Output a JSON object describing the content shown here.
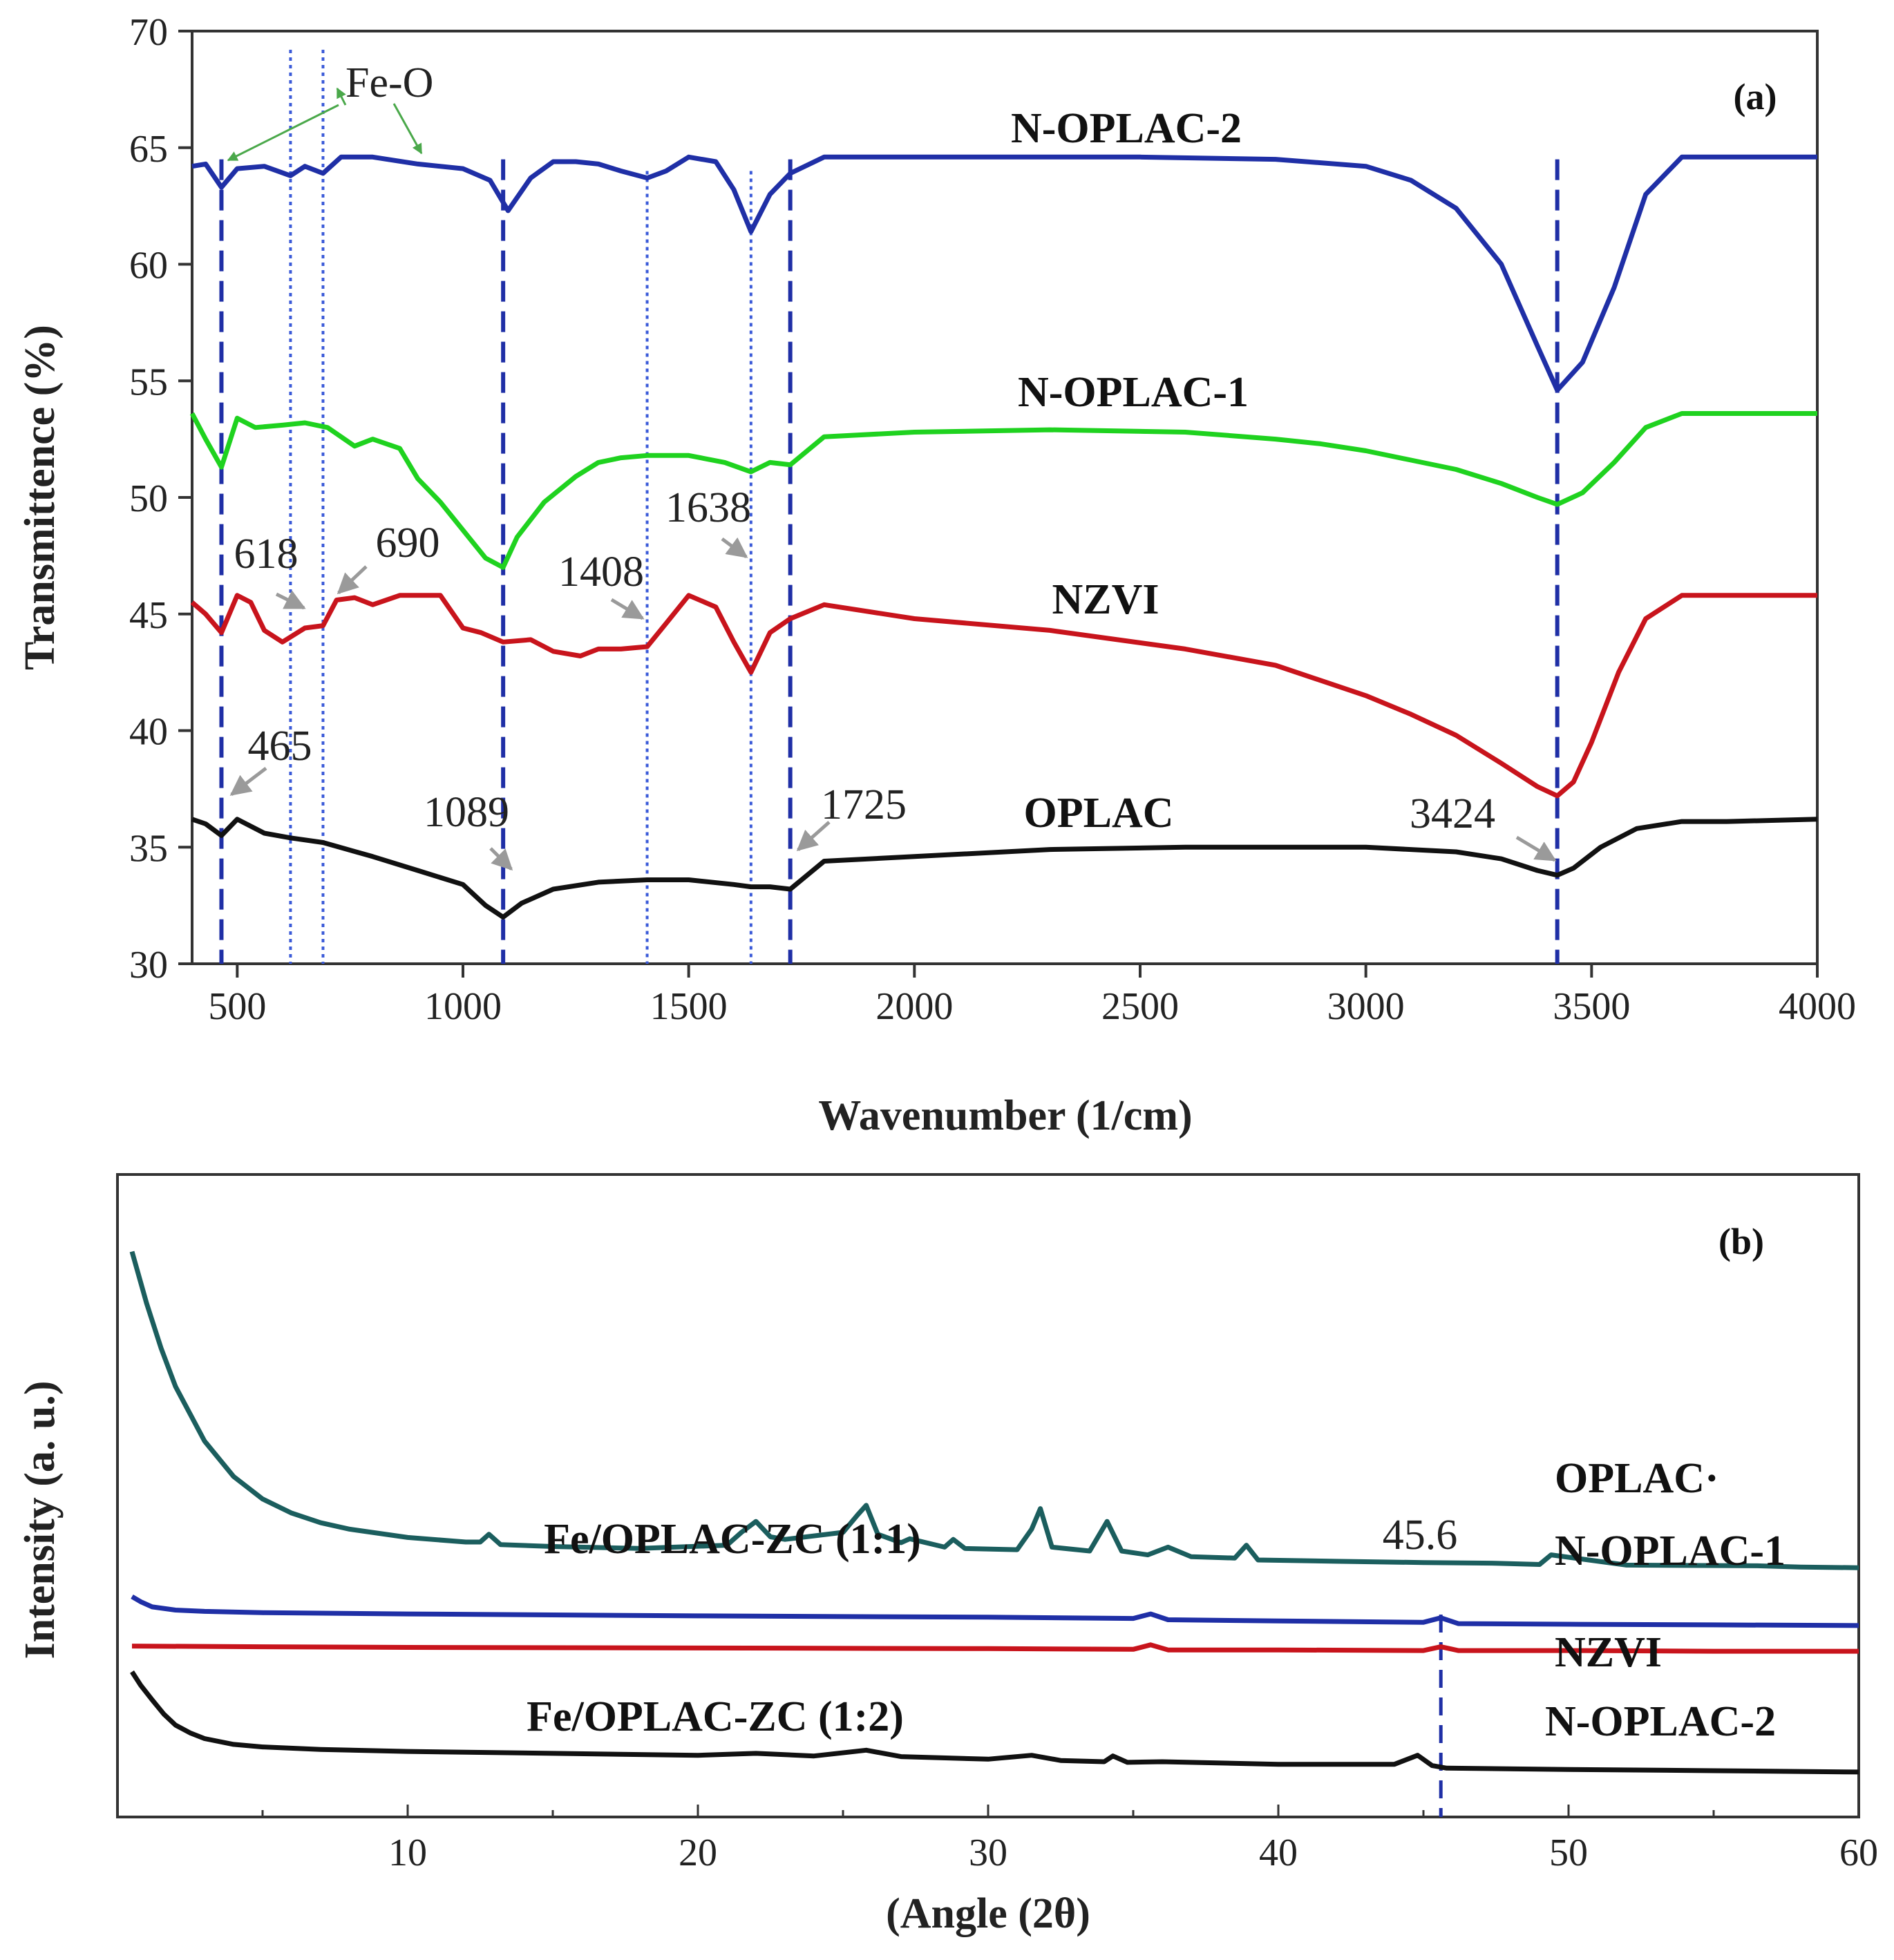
{
  "colors": {
    "n_oplac_2": "#1f2fa6",
    "n_oplac_1": "#1fd21f",
    "nzvi": "#c8141c",
    "oplac": "#111111",
    "xrd_oplac": "#1b5e5e",
    "xrd_n_oplac_1": "#1f2fa6",
    "xrd_nzvi": "#c8141c",
    "xrd_n_oplac_2": "#111111",
    "marker": "#1f2fa6",
    "fe_o": "#4aa84a",
    "arrow": "#9a9a9a"
  },
  "chart_data": [
    {
      "type": "line",
      "panel": "(a)",
      "xlabel": "Wavenumber (1/cm)",
      "ylabel": "Transmittence (%)",
      "xlim": [
        400,
        4000
      ],
      "ylim": [
        30,
        70
      ],
      "xticks": [
        500,
        1000,
        1500,
        2000,
        2500,
        3000,
        3500,
        4000
      ],
      "yticks": [
        30,
        35,
        40,
        45,
        50,
        55,
        60,
        65,
        70
      ],
      "fe_o_label": "Fe-O",
      "marker_lines_dashed": [
        465,
        1089,
        1725,
        3424
      ],
      "marker_lines_dotted": [
        618,
        690,
        1408,
        1638
      ],
      "peak_labels": [
        {
          "text": "465",
          "x": 465,
          "y": 35.5
        },
        {
          "text": "618",
          "x": 618,
          "y": 44.5
        },
        {
          "text": "690",
          "x": 690,
          "y": 44.5
        },
        {
          "text": "1089",
          "x": 1089,
          "y": 32.2
        },
        {
          "text": "1408",
          "x": 1408,
          "y": 43.6
        },
        {
          "text": "1638",
          "x": 1638,
          "y": 51.2
        },
        {
          "text": "1725",
          "x": 1725,
          "y": 33.3
        },
        {
          "text": "3424",
          "x": 3424,
          "y": 33.8
        }
      ],
      "series": [
        {
          "name": "N-OPLAC-2",
          "color_key": "n_oplac_2",
          "x": [
            400,
            430,
            465,
            500,
            560,
            618,
            650,
            690,
            730,
            800,
            900,
            1000,
            1060,
            1100,
            1150,
            1200,
            1250,
            1300,
            1350,
            1408,
            1450,
            1500,
            1560,
            1600,
            1638,
            1680,
            1725,
            1800,
            2000,
            2500,
            2800,
            3000,
            3100,
            3200,
            3300,
            3380,
            3424,
            3480,
            3550,
            3620,
            3700,
            3800,
            4000
          ],
          "y": [
            64.2,
            64.3,
            63.3,
            64.1,
            64.2,
            63.8,
            64.2,
            63.9,
            64.6,
            64.6,
            64.3,
            64.1,
            63.6,
            62.3,
            63.7,
            64.4,
            64.4,
            64.3,
            64.0,
            63.7,
            64.0,
            64.6,
            64.4,
            63.2,
            61.4,
            63.0,
            63.9,
            64.6,
            64.6,
            64.6,
            64.5,
            64.2,
            63.6,
            62.4,
            60.0,
            56.5,
            54.6,
            55.8,
            59.0,
            63.0,
            64.6,
            64.6,
            64.6
          ]
        },
        {
          "name": "N-OPLAC-1",
          "color_key": "n_oplac_1",
          "x": [
            400,
            430,
            465,
            500,
            540,
            600,
            650,
            700,
            760,
            800,
            860,
            900,
            950,
            1000,
            1050,
            1089,
            1120,
            1180,
            1250,
            1300,
            1350,
            1408,
            1500,
            1580,
            1638,
            1680,
            1725,
            1800,
            2000,
            2300,
            2600,
            2800,
            2900,
            3000,
            3100,
            3200,
            3300,
            3380,
            3424,
            3480,
            3550,
            3620,
            3700,
            3800,
            4000
          ],
          "y": [
            53.6,
            52.5,
            51.3,
            53.4,
            53.0,
            53.1,
            53.2,
            53.0,
            52.2,
            52.5,
            52.1,
            50.8,
            49.8,
            48.6,
            47.4,
            47.0,
            48.3,
            49.8,
            50.9,
            51.5,
            51.7,
            51.8,
            51.8,
            51.5,
            51.1,
            51.5,
            51.4,
            52.6,
            52.8,
            52.9,
            52.8,
            52.5,
            52.3,
            52.0,
            51.6,
            51.2,
            50.6,
            50.0,
            49.7,
            50.2,
            51.5,
            53.0,
            53.6,
            53.6,
            53.6
          ]
        },
        {
          "name": "NZVI",
          "color_key": "nzvi",
          "x": [
            400,
            430,
            465,
            500,
            530,
            560,
            600,
            650,
            690,
            720,
            760,
            800,
            860,
            950,
            1000,
            1040,
            1089,
            1150,
            1200,
            1260,
            1300,
            1350,
            1408,
            1450,
            1500,
            1560,
            1600,
            1638,
            1680,
            1725,
            1800,
            2000,
            2300,
            2600,
            2800,
            3000,
            3100,
            3200,
            3300,
            3380,
            3424,
            3460,
            3500,
            3560,
            3620,
            3700,
            4000
          ],
          "y": [
            45.5,
            45.0,
            44.2,
            45.8,
            45.5,
            44.3,
            43.8,
            44.4,
            44.5,
            45.6,
            45.7,
            45.4,
            45.8,
            45.8,
            44.4,
            44.2,
            43.8,
            43.9,
            43.4,
            43.2,
            43.5,
            43.5,
            43.6,
            44.6,
            45.8,
            45.3,
            43.8,
            42.5,
            44.2,
            44.8,
            45.4,
            44.8,
            44.3,
            43.5,
            42.8,
            41.5,
            40.7,
            39.8,
            38.6,
            37.6,
            37.2,
            37.8,
            39.5,
            42.5,
            44.8,
            45.8,
            45.8
          ]
        },
        {
          "name": "OPLAC",
          "color_key": "oplac",
          "x": [
            400,
            430,
            465,
            500,
            560,
            618,
            690,
            800,
            900,
            1000,
            1050,
            1089,
            1130,
            1200,
            1300,
            1408,
            1500,
            1600,
            1638,
            1680,
            1725,
            1800,
            2000,
            2300,
            2600,
            2800,
            3000,
            3200,
            3300,
            3380,
            3424,
            3460,
            3520,
            3600,
            3700,
            3800,
            4000
          ],
          "y": [
            36.2,
            36.0,
            35.5,
            36.2,
            35.6,
            35.4,
            35.2,
            34.6,
            34.0,
            33.4,
            32.5,
            32.0,
            32.6,
            33.2,
            33.5,
            33.6,
            33.6,
            33.4,
            33.3,
            33.3,
            33.2,
            34.4,
            34.6,
            34.9,
            35.0,
            35.0,
            35.0,
            34.8,
            34.5,
            34.0,
            33.8,
            34.1,
            35.0,
            35.8,
            36.1,
            36.1,
            36.2
          ]
        }
      ]
    },
    {
      "type": "line",
      "panel": "(b)",
      "xlabel": "(Angle (2θ)",
      "ylabel": "Intensity (a. u.)",
      "xlim": [
        0,
        60
      ],
      "ylim": [
        0,
        100
      ],
      "xticks": [
        10,
        20,
        30,
        40,
        50,
        60
      ],
      "marker_line": 45.6,
      "marker_label": "45.6",
      "annotations": [
        "Fe/OPLAC-ZC (1:1)",
        "Fe/OPLAC-ZC (1:2)"
      ],
      "series": [
        {
          "name": "OPLAC·",
          "color_key": "xrd_oplac",
          "x": [
            0.5,
            1,
            1.5,
            2,
            3,
            4,
            5,
            6,
            7,
            8,
            10,
            12,
            12.5,
            12.8,
            13.2,
            15,
            18,
            21,
            21.5,
            22,
            22.5,
            23,
            25,
            25.5,
            25.8,
            26.2,
            27,
            27.3,
            28.5,
            28.8,
            29.2,
            31,
            31.5,
            31.8,
            32.2,
            33.5,
            34.1,
            34.6,
            35.5,
            36.2,
            37,
            38.5,
            38.9,
            39.3,
            42,
            45,
            47.5,
            49,
            49.4,
            52,
            56.5,
            58,
            60
          ],
          "y": [
            88,
            80,
            73,
            67,
            58.5,
            53,
            49.5,
            47.3,
            45.8,
            44.8,
            43.5,
            42.8,
            42.8,
            44.0,
            42.4,
            42.1,
            41.8,
            42.3,
            44.3,
            46.0,
            43.6,
            43.2,
            44.3,
            47.0,
            48.5,
            44.0,
            42.7,
            43.3,
            42.0,
            43.2,
            41.8,
            41.6,
            44.8,
            48.0,
            42.0,
            41.4,
            46.0,
            41.4,
            40.8,
            42.0,
            40.5,
            40.3,
            42.3,
            40.0,
            39.8,
            39.6,
            39.5,
            39.3,
            40.8,
            39.2,
            39.1,
            38.9,
            38.8
          ]
        },
        {
          "name": "N-OPLAC-1",
          "color_key": "xrd_n_oplac_1",
          "x": [
            0.5,
            0.8,
            1.2,
            2,
            3,
            5,
            10,
            20,
            30,
            35,
            35.6,
            36.2,
            40,
            45,
            45.6,
            46.2,
            50,
            55,
            60
          ],
          "y": [
            34.3,
            33.5,
            32.7,
            32.2,
            32.0,
            31.8,
            31.6,
            31.3,
            31.1,
            30.9,
            31.6,
            30.7,
            30.5,
            30.3,
            31.0,
            30.1,
            30.0,
            29.9,
            29.8
          ]
        },
        {
          "name": "NZVI",
          "color_key": "xrd_nzvi",
          "x": [
            0.5,
            5,
            10,
            20,
            30,
            35,
            35.6,
            36.2,
            40,
            45,
            45.6,
            46.2,
            50,
            55,
            60
          ],
          "y": [
            26.6,
            26.5,
            26.4,
            26.3,
            26.2,
            26.1,
            26.8,
            26.0,
            26.0,
            25.9,
            26.5,
            25.9,
            25.9,
            25.8,
            25.8
          ]
        },
        {
          "name": "N-OPLAC-2",
          "color_key": "xrd_n_oplac_2",
          "x": [
            0.5,
            0.8,
            1.2,
            1.6,
            2,
            2.5,
            3,
            4,
            5,
            7,
            10,
            15,
            20,
            22,
            24,
            25.8,
            27,
            30,
            31.5,
            32.5,
            34,
            34.3,
            34.8,
            36,
            40,
            44,
            44.8,
            45.3,
            45.8,
            50,
            55,
            60
          ],
          "y": [
            22.6,
            20.5,
            18.2,
            16.0,
            14.3,
            13.1,
            12.2,
            11.3,
            10.9,
            10.5,
            10.2,
            9.9,
            9.6,
            9.9,
            9.5,
            10.4,
            9.4,
            9.0,
            9.6,
            8.8,
            8.6,
            9.5,
            8.5,
            8.6,
            8.2,
            8.2,
            9.6,
            8.0,
            7.6,
            7.4,
            7.2,
            7.0
          ]
        }
      ]
    }
  ]
}
